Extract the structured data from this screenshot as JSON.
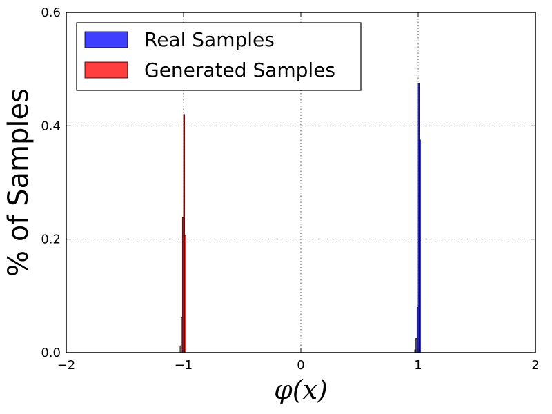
{
  "chart_data": {
    "type": "bar",
    "title": "",
    "xlabel": "φ(x)",
    "ylabel": "% of Samples",
    "xlim": [
      -2,
      2
    ],
    "ylim": [
      0,
      0.6
    ],
    "xticks": [
      -2,
      -1,
      0,
      1,
      2
    ],
    "xtick_labels": [
      "−2",
      "−1",
      "0",
      "1",
      "2"
    ],
    "yticks": [
      0,
      0.2,
      0.4,
      0.6
    ],
    "ytick_labels": [
      "0.0",
      "0.2",
      "0.4",
      "0.6"
    ],
    "grid": true,
    "legend_position": "top-left",
    "bin_width": 0.01,
    "series": [
      {
        "name": "Real Samples",
        "color": "#3f3fff",
        "x": [
          0.975,
          0.985,
          0.995,
          1.005,
          1.015
        ],
        "values": [
          0.005,
          0.025,
          0.08,
          0.475,
          0.375
        ]
      },
      {
        "name": "Generated Samples",
        "color": "#ff3f3f",
        "x": [
          -1.025,
          -1.015,
          -1.005,
          -0.995,
          -0.985
        ],
        "values": [
          0.012,
          0.062,
          0.238,
          0.42,
          0.207
        ]
      }
    ]
  }
}
